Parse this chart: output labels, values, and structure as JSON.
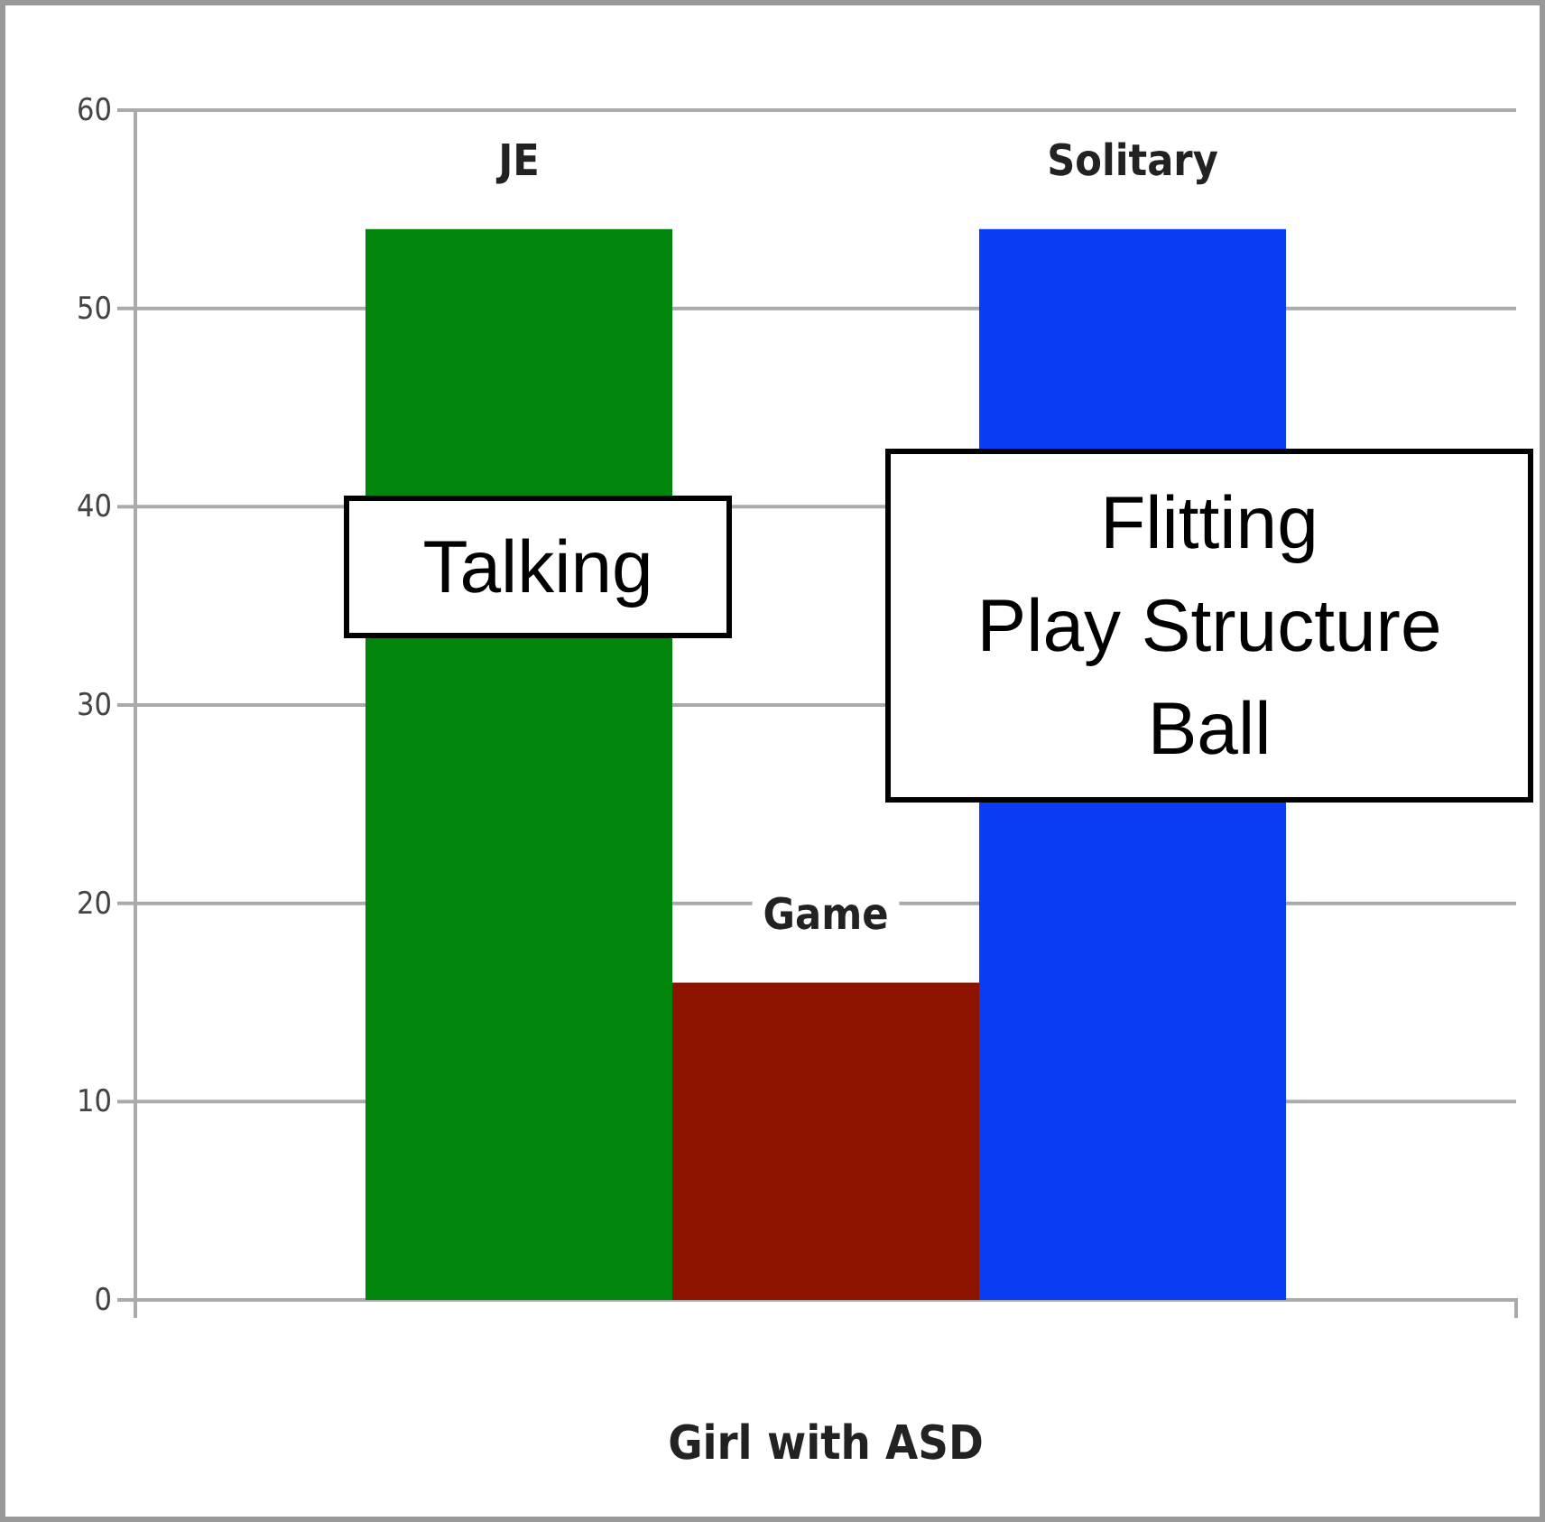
{
  "chart_data": {
    "type": "bar",
    "xlabel": "Girl with ASD",
    "categories": [
      null
    ],
    "series": [
      {
        "name": "JE",
        "color": "#00860a",
        "values": [
          54
        ]
      },
      {
        "name": "Game",
        "color": "#8f1400",
        "values": [
          16
        ]
      },
      {
        "name": "Solitary",
        "color": "#0b3cf5",
        "values": [
          54
        ]
      }
    ],
    "ylim": [
      0,
      60
    ],
    "yticks": [
      0,
      10,
      20,
      30,
      40,
      50,
      60
    ],
    "grid": "y",
    "annotations": [
      "Talking",
      "Flitting\nPlay Structure\nBall"
    ]
  }
}
